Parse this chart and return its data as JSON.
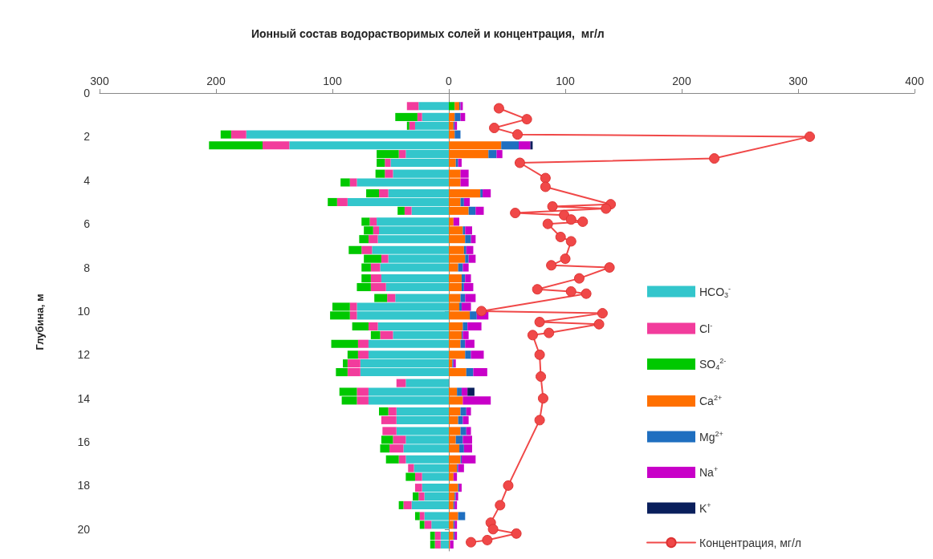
{
  "chart_data": {
    "type": "bar",
    "orientation": "horizontal",
    "stacked": true,
    "title": "Ионный состав водорастворимых солей и концентрация,  мг/л",
    "ylabel": "Глубина, м",
    "xlim": [
      -300,
      400
    ],
    "xticks": [
      {
        "value": -300,
        "label": "300"
      },
      {
        "value": -200,
        "label": "200"
      },
      {
        "value": -100,
        "label": "100"
      },
      0,
      100,
      200,
      300,
      400
    ],
    "ylim": [
      21,
      0
    ],
    "yticks": [
      0,
      2,
      4,
      6,
      8,
      10,
      12,
      14,
      16,
      18,
      20
    ],
    "legend": "right",
    "marker": "circle",
    "line_style": "solid",
    "x": [
      0.6,
      1.1,
      1.5,
      1.9,
      2.4,
      2.8,
      3.2,
      3.7,
      4.1,
      4.6,
      5.0,
      5.4,
      5.9,
      6.3,
      6.7,
      7.2,
      7.6,
      8.0,
      8.5,
      8.9,
      9.4,
      9.8,
      10.2,
      10.7,
      11.1,
      11.5,
      12.0,
      12.4,
      12.8,
      13.3,
      13.7,
      14.1,
      14.6,
      15.0,
      15.5,
      15.9,
      16.3,
      16.8,
      17.2,
      17.6,
      18.1,
      18.5,
      18.9,
      19.4,
      19.8,
      20.3,
      20.7
    ],
    "series": [
      {
        "name": "HCO$_{3}$$^{-}$",
        "color": "#33c6cc",
        "values": [
          -26,
          -23,
          -29,
          -174,
          -137,
          -37,
          -50,
          -48,
          -79,
          -52,
          -87,
          -32,
          -62,
          -60,
          -61,
          -66,
          -52,
          -59,
          -58,
          -54,
          -46,
          -79,
          -79,
          -61,
          -48,
          -69,
          -69,
          -76,
          -76,
          -37,
          -69,
          -69,
          -45,
          -45,
          -45,
          -37,
          -39,
          -37,
          -30,
          -23,
          -23,
          -21,
          -32,
          -21,
          -15,
          -7,
          -7
        ]
      },
      {
        "name": "Cl$^{-}$",
        "color": "#f23c9c",
        "values": [
          -10,
          -4,
          -5,
          -13,
          -23,
          -6,
          -5,
          -7,
          -6,
          -8,
          -9,
          -6,
          -6,
          -5,
          -8,
          -9,
          -6,
          -8,
          -9,
          -13,
          -7,
          -6,
          -6,
          -8,
          -11,
          -9,
          -9,
          -11,
          -11,
          -8,
          -10,
          -10,
          -7,
          -13,
          -12,
          -11,
          -12,
          -6,
          -5,
          -6,
          -6,
          -5,
          -7,
          -4,
          -6,
          -5,
          -5
        ]
      },
      {
        "name": "SO$_{4}$$^{2-}$",
        "color": "#00c800",
        "values": [
          5,
          -19,
          -2,
          -9,
          -46,
          -19,
          -7,
          -8,
          -8,
          -11,
          -8,
          -6,
          -7,
          -8,
          -8,
          -11,
          -15,
          -8,
          -8,
          -12,
          -11,
          -15,
          -17,
          -14,
          -8,
          -23,
          -9,
          -4,
          -10,
          null,
          -15,
          -13,
          -8,
          null,
          null,
          -10,
          -8,
          -11,
          null,
          -8,
          null,
          -5,
          -4,
          -4,
          -4,
          -4,
          -4
        ]
      },
      {
        "name": "Ca$^{2+}$",
        "color": "#ff7000",
        "values": [
          4,
          5,
          4,
          5,
          45,
          34,
          6,
          10,
          10,
          27,
          10,
          17,
          4,
          12,
          14,
          13,
          14,
          8,
          11,
          11,
          10,
          9,
          18,
          12,
          11,
          10,
          14,
          3,
          15,
          null,
          7,
          12,
          10,
          8,
          10,
          6,
          9,
          10,
          7,
          4,
          8,
          5,
          4,
          8,
          4,
          4,
          1
        ]
      },
      {
        "name": "Mg$^{2+}$",
        "color": "#1f6fc0",
        "values": [
          1,
          5,
          1,
          5,
          15,
          7,
          2,
          null,
          null,
          2,
          3,
          6,
          null,
          2,
          5,
          2,
          3,
          4,
          3,
          2,
          4,
          2,
          6,
          4,
          1,
          4,
          5,
          1,
          6,
          null,
          4,
          null,
          5,
          4,
          5,
          6,
          4,
          1,
          1,
          null,
          1,
          1,
          1,
          6,
          1,
          1,
          null
        ]
      },
      {
        "name": "Na$^{+}$",
        "color": "#c800c8",
        "values": [
          2,
          4,
          2,
          null,
          10,
          5,
          3,
          7,
          7,
          7,
          5,
          7,
          5,
          6,
          4,
          6,
          6,
          5,
          5,
          8,
          9,
          8,
          10,
          12,
          5,
          8,
          11,
          2,
          12,
          null,
          5,
          24,
          4,
          5,
          4,
          8,
          7,
          12,
          5,
          3,
          2,
          2,
          2,
          null,
          2,
          2,
          3
        ]
      },
      {
        "name": "K$^{+}$",
        "color": "#0a1f5c",
        "values": [
          null,
          null,
          null,
          null,
          2,
          null,
          null,
          null,
          null,
          null,
          null,
          null,
          null,
          null,
          null,
          null,
          null,
          null,
          null,
          null,
          null,
          null,
          null,
          null,
          null,
          null,
          null,
          null,
          null,
          null,
          6,
          null,
          null,
          null,
          null,
          null,
          null,
          null,
          null,
          null,
          null,
          null,
          null,
          null,
          null,
          null,
          null
        ]
      },
      {
        "name": "Концентрация, мг/л",
        "type": "line",
        "color": "#f04848",
        "x": [
          0.7,
          1.2,
          1.6,
          1.9,
          2.0,
          3.0,
          3.2,
          3.9,
          4.3,
          5.1,
          5.2,
          5.3,
          5.5,
          5.6,
          5.8,
          5.9,
          6.0,
          6.6,
          6.8,
          7.6,
          7.9,
          8.0,
          8.5,
          9.0,
          9.1,
          9.2,
          10.0,
          10.1,
          10.5,
          10.6,
          11.0,
          11.1,
          12.0,
          13.0,
          14.0,
          15.0,
          18.0,
          18.9,
          19.7,
          20.0,
          20.2,
          20.5,
          20.6
        ],
        "values": [
          43,
          67,
          39,
          59,
          310,
          228,
          61,
          83,
          83,
          139,
          89,
          135,
          57,
          99,
          105,
          115,
          85,
          96,
          105,
          100,
          88,
          138,
          112,
          76,
          105,
          118,
          28,
          132,
          78,
          129,
          86,
          72,
          78,
          79,
          81,
          78,
          51,
          44,
          36,
          38,
          58,
          33,
          19
        ]
      }
    ]
  }
}
